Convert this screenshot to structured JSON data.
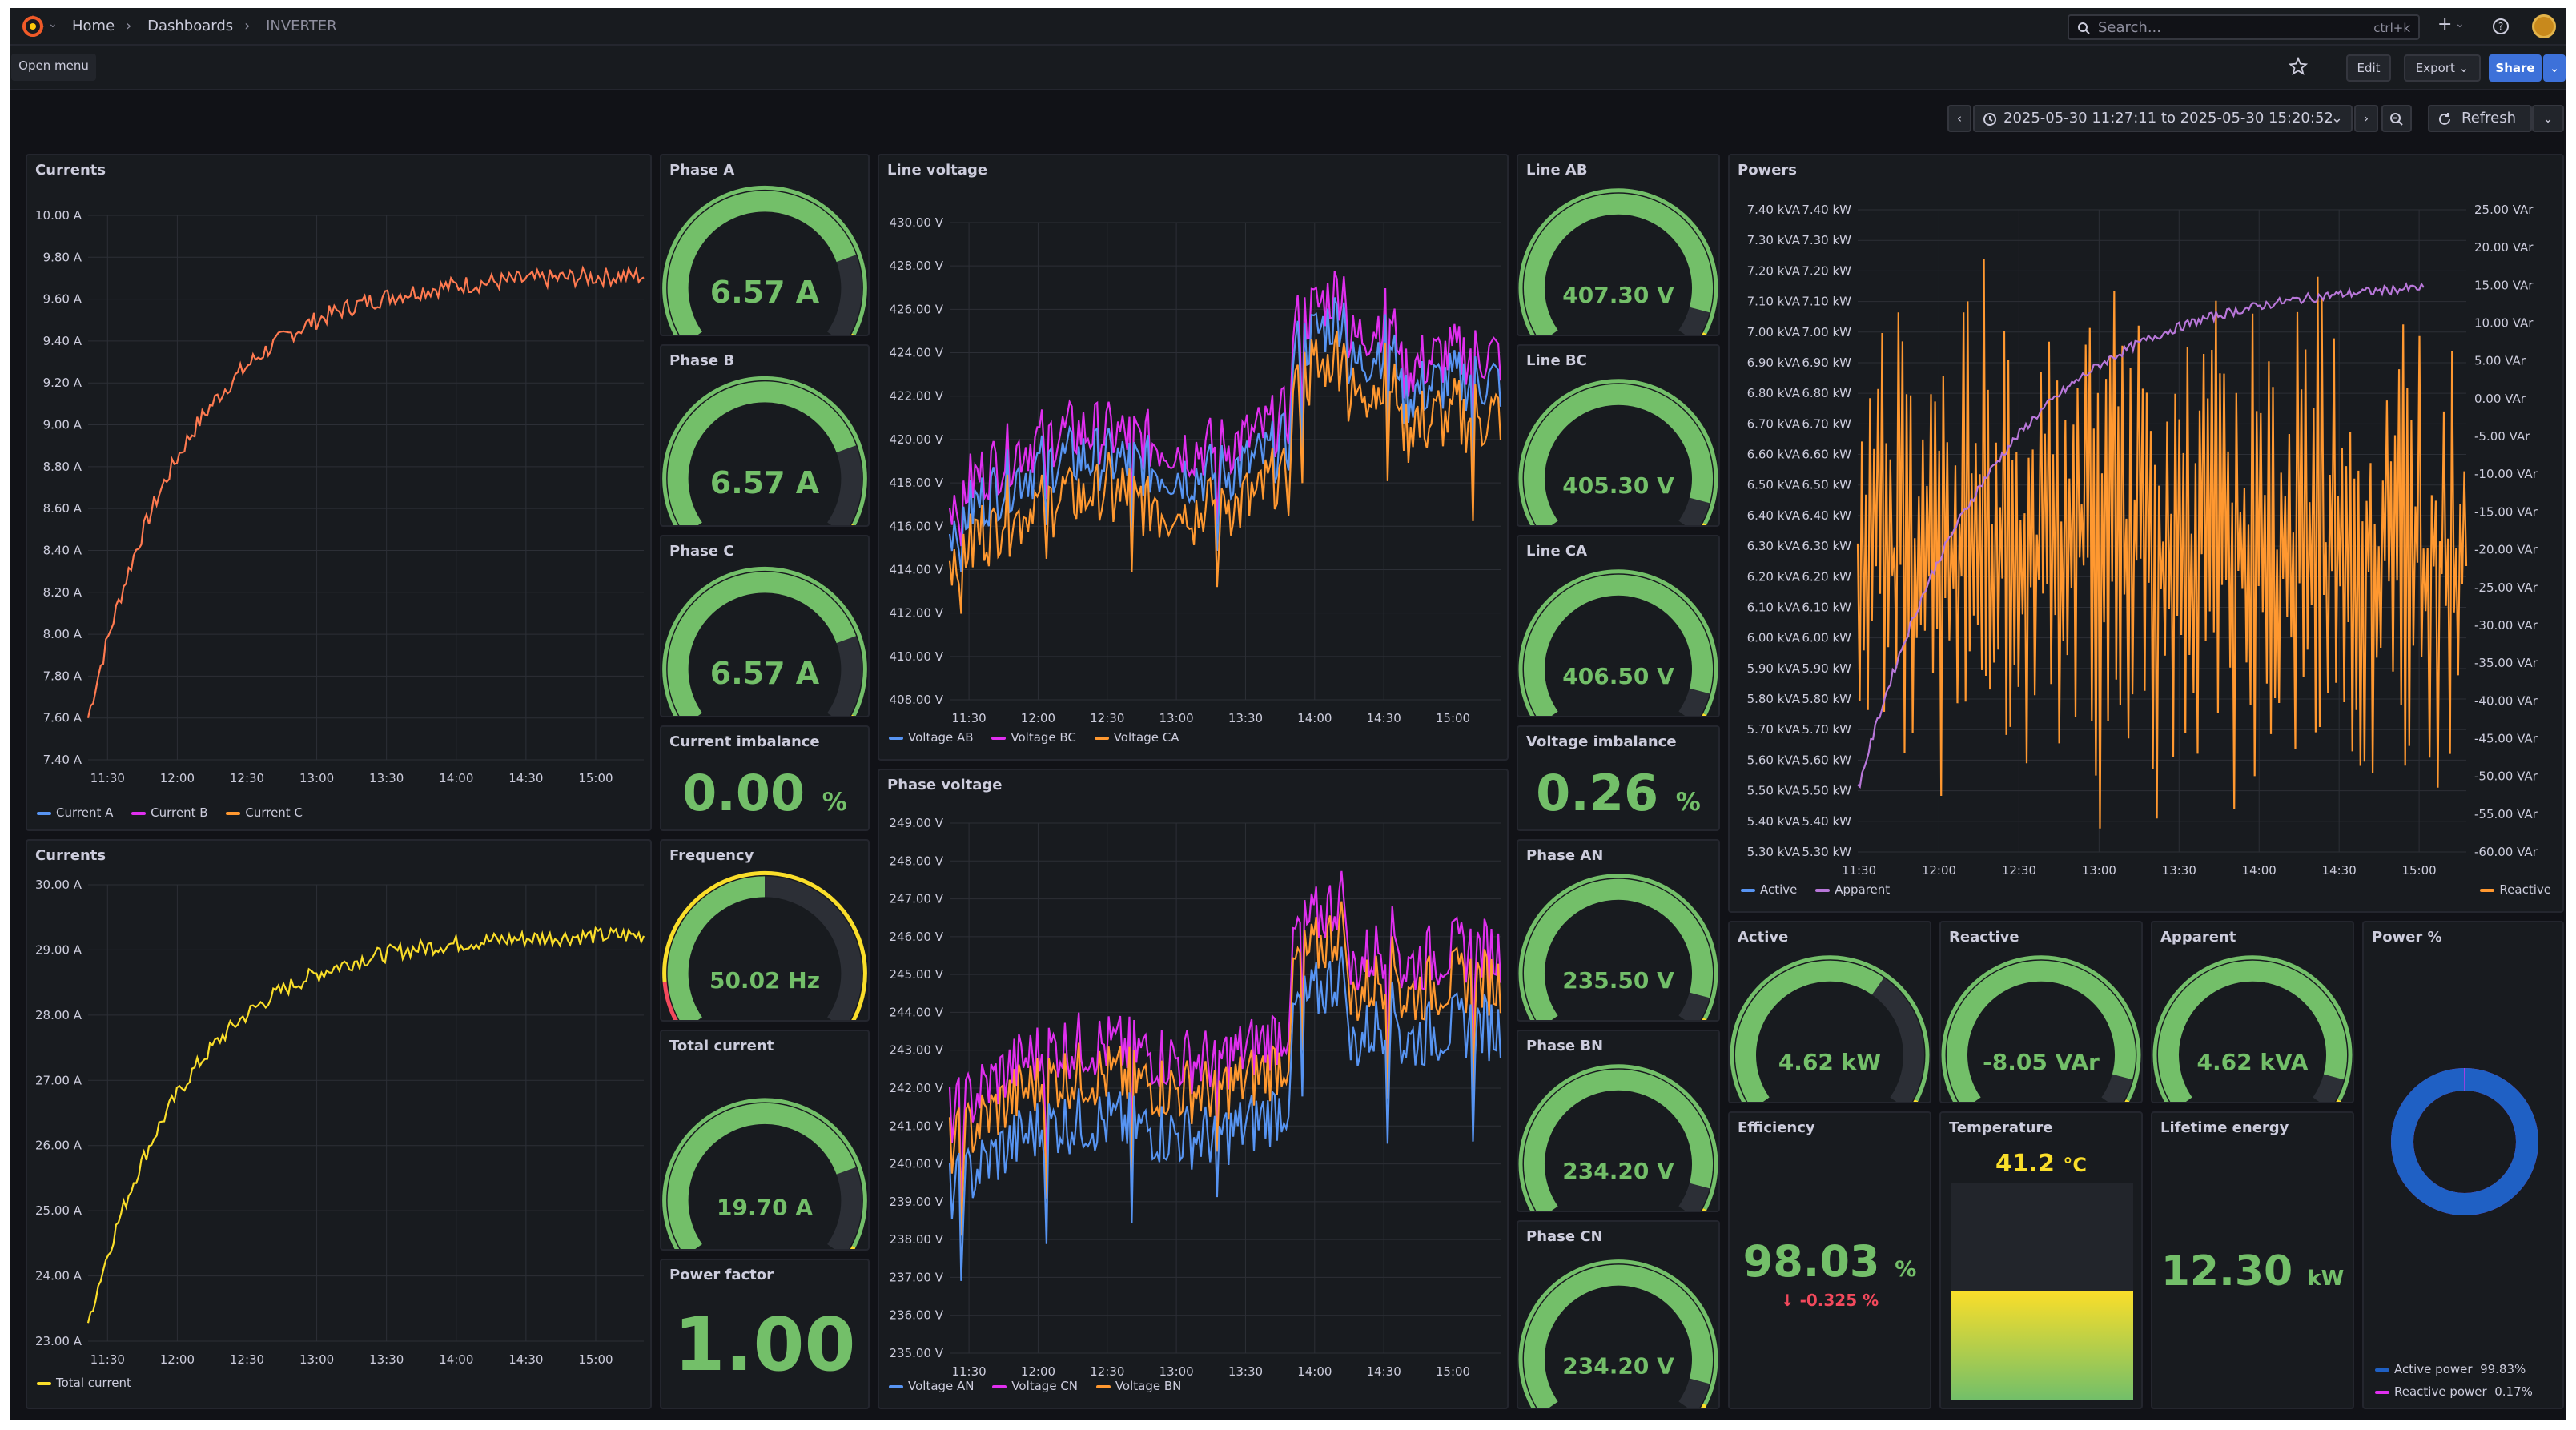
{
  "header": {
    "breadcrumb": [
      "Home",
      "Dashboards",
      "INVERTER"
    ],
    "search_placeholder": "Search...",
    "search_shortcut": "ctrl+k",
    "open_menu": "Open menu",
    "edit": "Edit",
    "export": "Export",
    "share": "Share",
    "time_range": "2025-05-30 11:27:11 to 2025-05-30 15:20:52",
    "refresh": "Refresh"
  },
  "colors": {
    "green": "#73bf69",
    "orange": "#ff9830",
    "yellow": "#fade2a",
    "blue": "#5794f2",
    "purple": "#b877d9",
    "magenta": "#e02fef",
    "red": "#f2495c",
    "coral": "#ff7a50"
  },
  "time_ticks": [
    "11:30",
    "12:00",
    "12:30",
    "13:00",
    "13:30",
    "14:00",
    "14:30",
    "15:00"
  ],
  "currents_top": {
    "title": "Currents",
    "yticks": [
      "10.00 A",
      "9.80 A",
      "9.60 A",
      "9.40 A",
      "9.20 A",
      "9.00 A",
      "8.80 A",
      "8.60 A",
      "8.40 A",
      "8.20 A",
      "8.00 A",
      "7.80 A",
      "7.60 A",
      "7.40 A"
    ],
    "legend": [
      "Current A",
      "Current B",
      "Current C"
    ]
  },
  "currents_bottom": {
    "title": "Currents",
    "yticks": [
      "30.00 A",
      "29.00 A",
      "28.00 A",
      "27.00 A",
      "26.00 A",
      "25.00 A",
      "24.00 A",
      "23.00 A"
    ],
    "legend": [
      "Total current"
    ]
  },
  "gauges": {
    "phase_a": {
      "title": "Phase A",
      "value": "6.57",
      "unit": "A",
      "fraction": 0.78
    },
    "phase_b": {
      "title": "Phase B",
      "value": "6.57",
      "unit": "A",
      "fraction": 0.78
    },
    "phase_c": {
      "title": "Phase C",
      "value": "6.57",
      "unit": "A",
      "fraction": 0.78
    },
    "frequency": {
      "title": "Frequency",
      "value": "50.02 Hz",
      "fraction": 0.5
    },
    "total_current": {
      "title": "Total current",
      "value": "19.70 A",
      "fraction": 0.78
    },
    "line_ab": {
      "title": "Line AB",
      "value": "407.30 V",
      "fraction": 0.92
    },
    "line_bc": {
      "title": "Line BC",
      "value": "405.30 V",
      "fraction": 0.92
    },
    "line_ca": {
      "title": "Line CA",
      "value": "406.50 V",
      "fraction": 0.92
    },
    "phase_an": {
      "title": "Phase AN",
      "value": "235.50 V",
      "fraction": 0.92
    },
    "phase_bn": {
      "title": "Phase BN",
      "value": "234.20 V",
      "fraction": 0.92
    },
    "phase_cn": {
      "title": "Phase CN",
      "value": "234.20 V",
      "fraction": 0.92
    },
    "active": {
      "title": "Active",
      "value": "4.62 kW",
      "fraction": 0.64
    },
    "reactive": {
      "title": "Reactive",
      "value": "-8.05 VAr",
      "fraction": 0.92
    },
    "apparent": {
      "title": "Apparent",
      "value": "4.62 kVA",
      "fraction": 0.92
    }
  },
  "stats": {
    "current_imbalance": {
      "title": "Current imbalance",
      "value": "0.00",
      "unit": "%"
    },
    "power_factor": {
      "title": "Power factor",
      "value": "1.00"
    },
    "voltage_imbalance": {
      "title": "Voltage imbalance",
      "value": "0.26",
      "unit": "%"
    },
    "efficiency": {
      "title": "Efficiency",
      "value": "98.03",
      "unit": "%",
      "delta": "-0.325 %"
    },
    "temperature": {
      "title": "Temperature",
      "value": "41.2",
      "unit": "°C",
      "fraction": 0.5
    },
    "lifetime_energy": {
      "title": "Lifetime energy",
      "value": "12.30",
      "unit": "kW"
    }
  },
  "line_voltage": {
    "title": "Line voltage",
    "yticks": [
      "430.00 V",
      "428.00 V",
      "426.00 V",
      "424.00 V",
      "422.00 V",
      "420.00 V",
      "418.00 V",
      "416.00 V",
      "414.00 V",
      "412.00 V",
      "410.00 V",
      "408.00 V"
    ],
    "legend": [
      "Voltage AB",
      "Voltage BC",
      "Voltage CA"
    ]
  },
  "phase_voltage": {
    "title": "Phase voltage",
    "yticks": [
      "249.00 V",
      "248.00 V",
      "247.00 V",
      "246.00 V",
      "245.00 V",
      "244.00 V",
      "243.00 V",
      "242.00 V",
      "241.00 V",
      "240.00 V",
      "239.00 V",
      "238.00 V",
      "237.00 V",
      "236.00 V",
      "235.00 V"
    ],
    "legend": [
      "Voltage AN",
      "Voltage CN",
      "Voltage BN"
    ]
  },
  "powers": {
    "title": "Powers",
    "y_kva": [
      "7.40 kVA",
      "7.30 kVA",
      "7.20 kVA",
      "7.10 kVA",
      "7.00 kVA",
      "6.90 kVA",
      "6.80 kVA",
      "6.70 kVA",
      "6.60 kVA",
      "6.50 kVA",
      "6.40 kVA",
      "6.30 kVA",
      "6.20 kVA",
      "6.10 kVA",
      "6.00 kVA",
      "5.90 kVA",
      "5.80 kVA",
      "5.70 kVA",
      "5.60 kVA",
      "5.50 kVA",
      "5.40 kVA",
      "5.30 kVA"
    ],
    "y_kw": [
      "7.40 kW",
      "7.30 kW",
      "7.20 kW",
      "7.10 kW",
      "7.00 kW",
      "6.90 kW",
      "6.80 kW",
      "6.70 kW",
      "6.60 kW",
      "6.50 kW",
      "6.40 kW",
      "6.30 kW",
      "6.20 kW",
      "6.10 kW",
      "6.00 kW",
      "5.90 kW",
      "5.80 kW",
      "5.70 kW",
      "5.60 kW",
      "5.50 kW",
      "5.40 kW",
      "5.30 kW"
    ],
    "y_var": [
      "25.00 VAr",
      "20.00 VAr",
      "15.00 VAr",
      "10.00 VAr",
      "5.00 VAr",
      "0.00 VAr",
      "-5.00 VAr",
      "-10.00 VAr",
      "-15.00 VAr",
      "-20.00 VAr",
      "-25.00 VAr",
      "-30.00 VAr",
      "-35.00 VAr",
      "-40.00 VAr",
      "-45.00 VAr",
      "-50.00 VAr",
      "-55.00 VAr",
      "-60.00 VAr"
    ],
    "legend_left": [
      "Active",
      "Apparent"
    ],
    "legend_right": [
      "Reactive"
    ]
  },
  "power_pct": {
    "title": "Power %",
    "active_label": "Active power",
    "active_value": "99.83%",
    "reactive_label": "Reactive power",
    "reactive_value": "0.17%",
    "active_fraction": 0.9983
  }
}
